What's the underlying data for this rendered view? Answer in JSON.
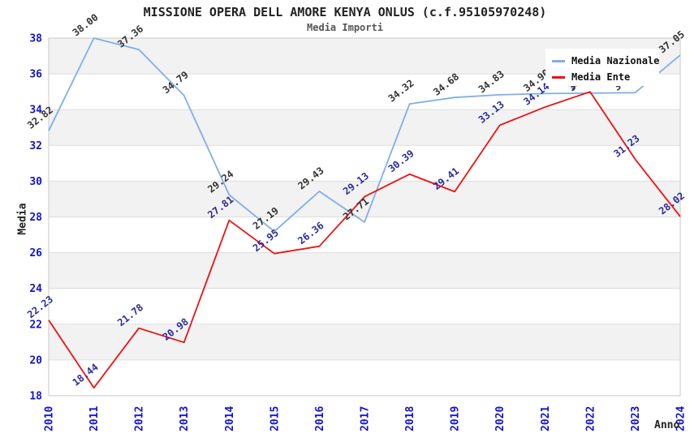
{
  "title": "MISSIONE OPERA DELL AMORE KENYA ONLUS (c.f.95105970248)",
  "subtitle": "Media Importi",
  "legend": {
    "items": [
      {
        "label": "Media Nazionale",
        "color": "#7FAEE8"
      },
      {
        "label": "Media Ente",
        "color": "#EE1111"
      }
    ]
  },
  "chart_data": {
    "type": "line",
    "x": [
      "2010",
      "2011",
      "2012",
      "2013",
      "2014",
      "2015",
      "2016",
      "2017",
      "2018",
      "2019",
      "2020",
      "2021",
      "2022",
      "2023",
      "2024"
    ],
    "series": [
      {
        "name": "Media Nazionale",
        "color": "#7FAEE8",
        "label_color": "#333333",
        "values": [
          32.82,
          38.0,
          37.36,
          34.79,
          29.24,
          27.19,
          29.43,
          27.71,
          34.32,
          34.68,
          34.83,
          34.9,
          34.92,
          34.95,
          37.05
        ]
      },
      {
        "name": "Media Ente",
        "color": "#EE1111",
        "label_color": "#2B2B99",
        "values": [
          22.23,
          18.44,
          21.78,
          20.98,
          27.81,
          25.95,
          26.36,
          29.13,
          30.39,
          29.41,
          33.13,
          34.14,
          35.0,
          31.23,
          28.02
        ]
      }
    ],
    "xlabel": "Anno",
    "ylabel": "Media",
    "ylim": [
      18,
      38
    ],
    "ytick_step": 2,
    "grid": true,
    "alternating_bands": true,
    "legend_position": "top-right"
  },
  "colors": {
    "tick_label": "#1414CC",
    "band": "#F2F2F2",
    "grid": "#DDDDDD",
    "plot_border": "#C8C8C8",
    "title": "#222222",
    "subtitle": "#555555"
  }
}
